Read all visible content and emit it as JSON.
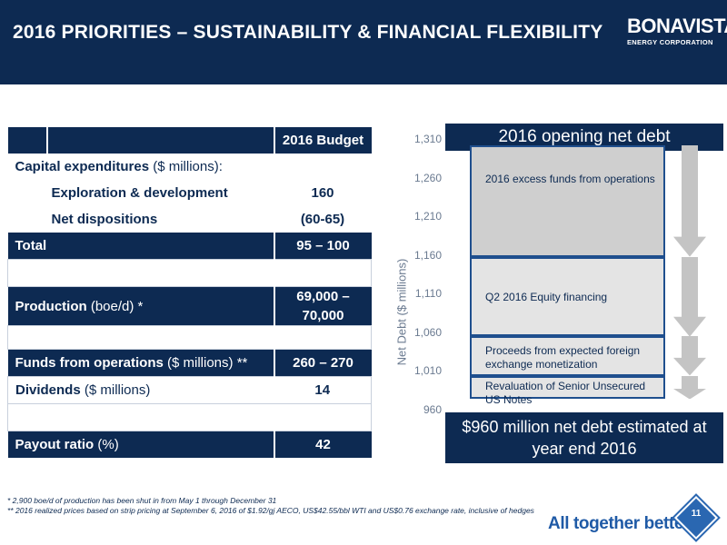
{
  "header": {
    "title": "2016 PRIORITIES – SUSTAINABILITY & FINANCIAL FLEXIBILITY",
    "logo_word": "BONAVISTA",
    "logo_sub": "ENERGY CORPORATION"
  },
  "table": {
    "budget_header": "2016 Budget",
    "capex_label": "Capital expenditures",
    "capex_unit": " ($ millions):",
    "explore_label": "Exploration & development",
    "explore_value": "160",
    "dispo_label": "Net dispositions",
    "dispo_value": "(60-65)",
    "total_label": "Total",
    "total_value": "95 – 100",
    "prod_label": "Production",
    "prod_unit": " (boe/d) *",
    "prod_value": "69,000 – 70,000",
    "ffo_label": "Funds from operations",
    "ffo_unit": " ($ millions) **",
    "ffo_value": "260 – 270",
    "div_label": "Dividends",
    "div_unit": " ($ millions)",
    "div_value": "14",
    "payout_label": "Payout ratio",
    "payout_unit": " (%)",
    "payout_value": "42"
  },
  "footnotes": {
    "note1": "* 2,900 boe/d of production has been shut in from May 1 through December 31",
    "note2": "** 2016 realized prices based on strip pricing at September 6, 2016 of $1.92/gj AECO, US$42.55/bbl WTI and US$0.76 exchange rate, inclusive of hedges"
  },
  "footer": {
    "slogan": "All together better.",
    "slogan_mark": "®",
    "page_number": "11"
  },
  "colors": {
    "navy": "#0d2a52",
    "accent_blue": "#1f5aa6",
    "segment_fill_dark": "#cfcfcf",
    "segment_fill_light": "#e4e4e4",
    "arrow_gray": "#c4c4c4"
  },
  "chart_data": {
    "type": "waterfall",
    "ylabel": "Net Debt ($ millions)",
    "y_ticks": [
      "1,310",
      "1,260",
      "1,210",
      "1,160",
      "1,110",
      "1,060",
      "1,010",
      "960"
    ],
    "ylim": [
      960,
      1310
    ],
    "start_label": "2016 opening net debt",
    "start_value": 1310,
    "end_label": "$960 million net debt estimated at year end 2016",
    "end_value": 960,
    "steps": [
      {
        "name": "2016 excess funds from operations",
        "from": 1310,
        "to": 1166
      },
      {
        "name": "Q2 2016 Equity financing",
        "from": 1166,
        "to": 1063
      },
      {
        "name": "Proceeds from expected foreign exchange monetization",
        "from": 1063,
        "to": 1012
      },
      {
        "name": "Revaluation of Senior Unsecured US Notes",
        "from": 1012,
        "to": 982
      }
    ]
  }
}
